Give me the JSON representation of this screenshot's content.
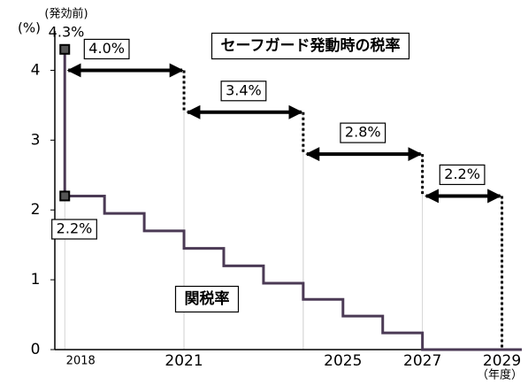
{
  "chart_data": {
    "type": "step",
    "y_label": "(%)",
    "x_unit": "（年度）",
    "xlim": [
      2017.75,
      2029.5
    ],
    "xticks": [
      2018,
      2021,
      2025,
      2027,
      2029
    ],
    "ylim": [
      0,
      4.5
    ],
    "yticks": [
      0,
      1,
      2,
      3,
      4
    ],
    "series": [
      {
        "name": "関税率",
        "color": "#4b3a55",
        "x": [
          2018,
          2019,
          2020,
          2021,
          2022,
          2023,
          2024,
          2025,
          2026,
          2027
        ],
        "values": [
          2.2,
          1.95,
          1.7,
          1.45,
          1.2,
          0.95,
          0.72,
          0.48,
          0.24,
          0
        ]
      }
    ],
    "points": [
      {
        "x": 2018,
        "value": 4.3,
        "label": "4.3%",
        "note": "(発効前)"
      },
      {
        "x": 2018,
        "value": 2.2,
        "label": "2.2%"
      }
    ],
    "safeguard": {
      "name": "セーフガード発動時の税率",
      "segments": [
        {
          "start": 2018,
          "end": 2021,
          "value": 4.0,
          "label": "4.0%"
        },
        {
          "start": 2021,
          "end": 2024,
          "value": 3.4,
          "label": "3.4%"
        },
        {
          "start": 2024,
          "end": 2027,
          "value": 2.8,
          "label": "2.8%"
        },
        {
          "start": 2027,
          "end": 2029,
          "value": 2.2,
          "label": "2.2%"
        }
      ]
    }
  }
}
